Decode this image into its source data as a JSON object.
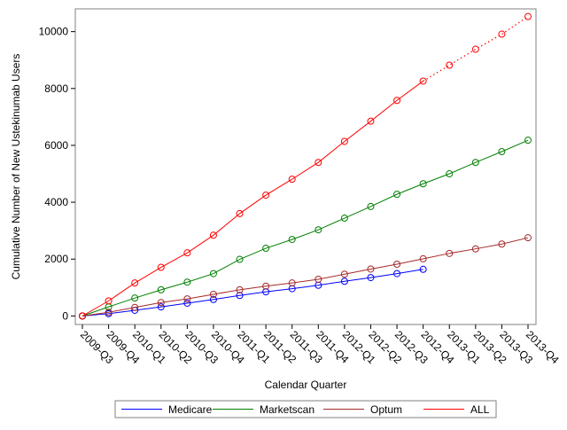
{
  "chart_data": {
    "type": "line",
    "title": "",
    "xlabel": "Calendar Quarter",
    "ylabel": "Cumulative Number of New Ustekinumab Users",
    "categories": [
      "2009-Q3",
      "2009-Q4",
      "2010-Q1",
      "2010-Q2",
      "2010-Q3",
      "2010-Q4",
      "2011-Q1",
      "2011-Q2",
      "2011-Q3",
      "2011-Q4",
      "2012-Q1",
      "2012-Q2",
      "2012-Q3",
      "2012-Q4",
      "2013-Q1",
      "2013-Q2",
      "2013-Q3",
      "2013-Q4"
    ],
    "ylim": [
      -300,
      10800
    ],
    "yticks": [
      0,
      2000,
      4000,
      6000,
      8000,
      10000
    ],
    "grid": false,
    "legend_position": "bottom",
    "series": [
      {
        "name": "Medicare",
        "color": "#0000ff",
        "line_style": "solid",
        "marker": "circle",
        "values": [
          0,
          80,
          200,
          320,
          450,
          580,
          720,
          850,
          960,
          1080,
          1220,
          1350,
          1490,
          1640,
          null,
          null,
          null,
          null
        ]
      },
      {
        "name": "Marketscan",
        "color": "#008000",
        "line_style": "solid",
        "marker": "circle",
        "values": [
          0,
          320,
          630,
          920,
          1190,
          1490,
          1990,
          2380,
          2690,
          3030,
          3440,
          3850,
          4280,
          4650,
          5000,
          5400,
          5780,
          6180
        ]
      },
      {
        "name": "Optum",
        "color": "#a52a2a",
        "line_style": "solid",
        "marker": "circle",
        "values": [
          0,
          130,
          300,
          470,
          600,
          760,
          920,
          1050,
          1160,
          1290,
          1470,
          1650,
          1820,
          2010,
          2200,
          2360,
          2530,
          2750
        ]
      },
      {
        "name": "ALL",
        "color": "#ff0000",
        "line_style": "solid",
        "projected_line_style": "dotted",
        "projected_from_index": 13,
        "marker": "circle",
        "values": [
          0,
          530,
          1160,
          1710,
          2220,
          2840,
          3600,
          4250,
          4810,
          5400,
          6140,
          6850,
          7580,
          8260,
          8820,
          9380,
          9910,
          10530
        ]
      }
    ]
  }
}
